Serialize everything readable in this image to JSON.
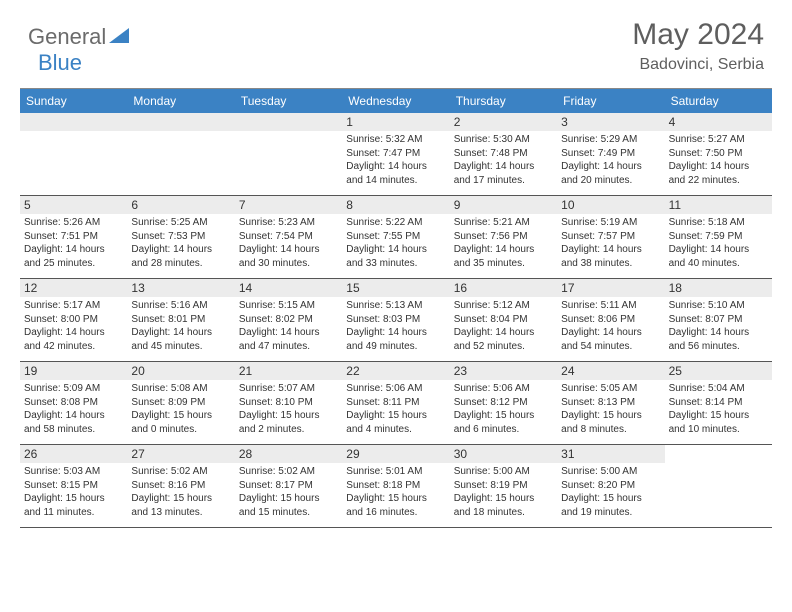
{
  "logo": {
    "general": "General",
    "blue": "Blue"
  },
  "title": "May 2024",
  "location": "Badovinci, Serbia",
  "colors": {
    "header_bg": "#3b82c4",
    "header_text": "#ffffff",
    "daynum_bg": "#ececec",
    "text": "#333333",
    "title_color": "#5e5e5e",
    "border": "#555555"
  },
  "font": {
    "family": "Arial",
    "title_size": 30,
    "location_size": 16,
    "dayname_size": 12,
    "daynum_size": 12,
    "info_size": 10
  },
  "daynames": [
    "Sunday",
    "Monday",
    "Tuesday",
    "Wednesday",
    "Thursday",
    "Friday",
    "Saturday"
  ],
  "weeks": [
    [
      {
        "n": "",
        "sr": "",
        "ss": "",
        "dl1": "",
        "dl2": ""
      },
      {
        "n": "",
        "sr": "",
        "ss": "",
        "dl1": "",
        "dl2": ""
      },
      {
        "n": "",
        "sr": "",
        "ss": "",
        "dl1": "",
        "dl2": ""
      },
      {
        "n": "1",
        "sr": "Sunrise: 5:32 AM",
        "ss": "Sunset: 7:47 PM",
        "dl1": "Daylight: 14 hours",
        "dl2": "and 14 minutes."
      },
      {
        "n": "2",
        "sr": "Sunrise: 5:30 AM",
        "ss": "Sunset: 7:48 PM",
        "dl1": "Daylight: 14 hours",
        "dl2": "and 17 minutes."
      },
      {
        "n": "3",
        "sr": "Sunrise: 5:29 AM",
        "ss": "Sunset: 7:49 PM",
        "dl1": "Daylight: 14 hours",
        "dl2": "and 20 minutes."
      },
      {
        "n": "4",
        "sr": "Sunrise: 5:27 AM",
        "ss": "Sunset: 7:50 PM",
        "dl1": "Daylight: 14 hours",
        "dl2": "and 22 minutes."
      }
    ],
    [
      {
        "n": "5",
        "sr": "Sunrise: 5:26 AM",
        "ss": "Sunset: 7:51 PM",
        "dl1": "Daylight: 14 hours",
        "dl2": "and 25 minutes."
      },
      {
        "n": "6",
        "sr": "Sunrise: 5:25 AM",
        "ss": "Sunset: 7:53 PM",
        "dl1": "Daylight: 14 hours",
        "dl2": "and 28 minutes."
      },
      {
        "n": "7",
        "sr": "Sunrise: 5:23 AM",
        "ss": "Sunset: 7:54 PM",
        "dl1": "Daylight: 14 hours",
        "dl2": "and 30 minutes."
      },
      {
        "n": "8",
        "sr": "Sunrise: 5:22 AM",
        "ss": "Sunset: 7:55 PM",
        "dl1": "Daylight: 14 hours",
        "dl2": "and 33 minutes."
      },
      {
        "n": "9",
        "sr": "Sunrise: 5:21 AM",
        "ss": "Sunset: 7:56 PM",
        "dl1": "Daylight: 14 hours",
        "dl2": "and 35 minutes."
      },
      {
        "n": "10",
        "sr": "Sunrise: 5:19 AM",
        "ss": "Sunset: 7:57 PM",
        "dl1": "Daylight: 14 hours",
        "dl2": "and 38 minutes."
      },
      {
        "n": "11",
        "sr": "Sunrise: 5:18 AM",
        "ss": "Sunset: 7:59 PM",
        "dl1": "Daylight: 14 hours",
        "dl2": "and 40 minutes."
      }
    ],
    [
      {
        "n": "12",
        "sr": "Sunrise: 5:17 AM",
        "ss": "Sunset: 8:00 PM",
        "dl1": "Daylight: 14 hours",
        "dl2": "and 42 minutes."
      },
      {
        "n": "13",
        "sr": "Sunrise: 5:16 AM",
        "ss": "Sunset: 8:01 PM",
        "dl1": "Daylight: 14 hours",
        "dl2": "and 45 minutes."
      },
      {
        "n": "14",
        "sr": "Sunrise: 5:15 AM",
        "ss": "Sunset: 8:02 PM",
        "dl1": "Daylight: 14 hours",
        "dl2": "and 47 minutes."
      },
      {
        "n": "15",
        "sr": "Sunrise: 5:13 AM",
        "ss": "Sunset: 8:03 PM",
        "dl1": "Daylight: 14 hours",
        "dl2": "and 49 minutes."
      },
      {
        "n": "16",
        "sr": "Sunrise: 5:12 AM",
        "ss": "Sunset: 8:04 PM",
        "dl1": "Daylight: 14 hours",
        "dl2": "and 52 minutes."
      },
      {
        "n": "17",
        "sr": "Sunrise: 5:11 AM",
        "ss": "Sunset: 8:06 PM",
        "dl1": "Daylight: 14 hours",
        "dl2": "and 54 minutes."
      },
      {
        "n": "18",
        "sr": "Sunrise: 5:10 AM",
        "ss": "Sunset: 8:07 PM",
        "dl1": "Daylight: 14 hours",
        "dl2": "and 56 minutes."
      }
    ],
    [
      {
        "n": "19",
        "sr": "Sunrise: 5:09 AM",
        "ss": "Sunset: 8:08 PM",
        "dl1": "Daylight: 14 hours",
        "dl2": "and 58 minutes."
      },
      {
        "n": "20",
        "sr": "Sunrise: 5:08 AM",
        "ss": "Sunset: 8:09 PM",
        "dl1": "Daylight: 15 hours",
        "dl2": "and 0 minutes."
      },
      {
        "n": "21",
        "sr": "Sunrise: 5:07 AM",
        "ss": "Sunset: 8:10 PM",
        "dl1": "Daylight: 15 hours",
        "dl2": "and 2 minutes."
      },
      {
        "n": "22",
        "sr": "Sunrise: 5:06 AM",
        "ss": "Sunset: 8:11 PM",
        "dl1": "Daylight: 15 hours",
        "dl2": "and 4 minutes."
      },
      {
        "n": "23",
        "sr": "Sunrise: 5:06 AM",
        "ss": "Sunset: 8:12 PM",
        "dl1": "Daylight: 15 hours",
        "dl2": "and 6 minutes."
      },
      {
        "n": "24",
        "sr": "Sunrise: 5:05 AM",
        "ss": "Sunset: 8:13 PM",
        "dl1": "Daylight: 15 hours",
        "dl2": "and 8 minutes."
      },
      {
        "n": "25",
        "sr": "Sunrise: 5:04 AM",
        "ss": "Sunset: 8:14 PM",
        "dl1": "Daylight: 15 hours",
        "dl2": "and 10 minutes."
      }
    ],
    [
      {
        "n": "26",
        "sr": "Sunrise: 5:03 AM",
        "ss": "Sunset: 8:15 PM",
        "dl1": "Daylight: 15 hours",
        "dl2": "and 11 minutes."
      },
      {
        "n": "27",
        "sr": "Sunrise: 5:02 AM",
        "ss": "Sunset: 8:16 PM",
        "dl1": "Daylight: 15 hours",
        "dl2": "and 13 minutes."
      },
      {
        "n": "28",
        "sr": "Sunrise: 5:02 AM",
        "ss": "Sunset: 8:17 PM",
        "dl1": "Daylight: 15 hours",
        "dl2": "and 15 minutes."
      },
      {
        "n": "29",
        "sr": "Sunrise: 5:01 AM",
        "ss": "Sunset: 8:18 PM",
        "dl1": "Daylight: 15 hours",
        "dl2": "and 16 minutes."
      },
      {
        "n": "30",
        "sr": "Sunrise: 5:00 AM",
        "ss": "Sunset: 8:19 PM",
        "dl1": "Daylight: 15 hours",
        "dl2": "and 18 minutes."
      },
      {
        "n": "31",
        "sr": "Sunrise: 5:00 AM",
        "ss": "Sunset: 8:20 PM",
        "dl1": "Daylight: 15 hours",
        "dl2": "and 19 minutes."
      },
      {
        "n": "",
        "sr": "",
        "ss": "",
        "dl1": "",
        "dl2": ""
      }
    ]
  ]
}
